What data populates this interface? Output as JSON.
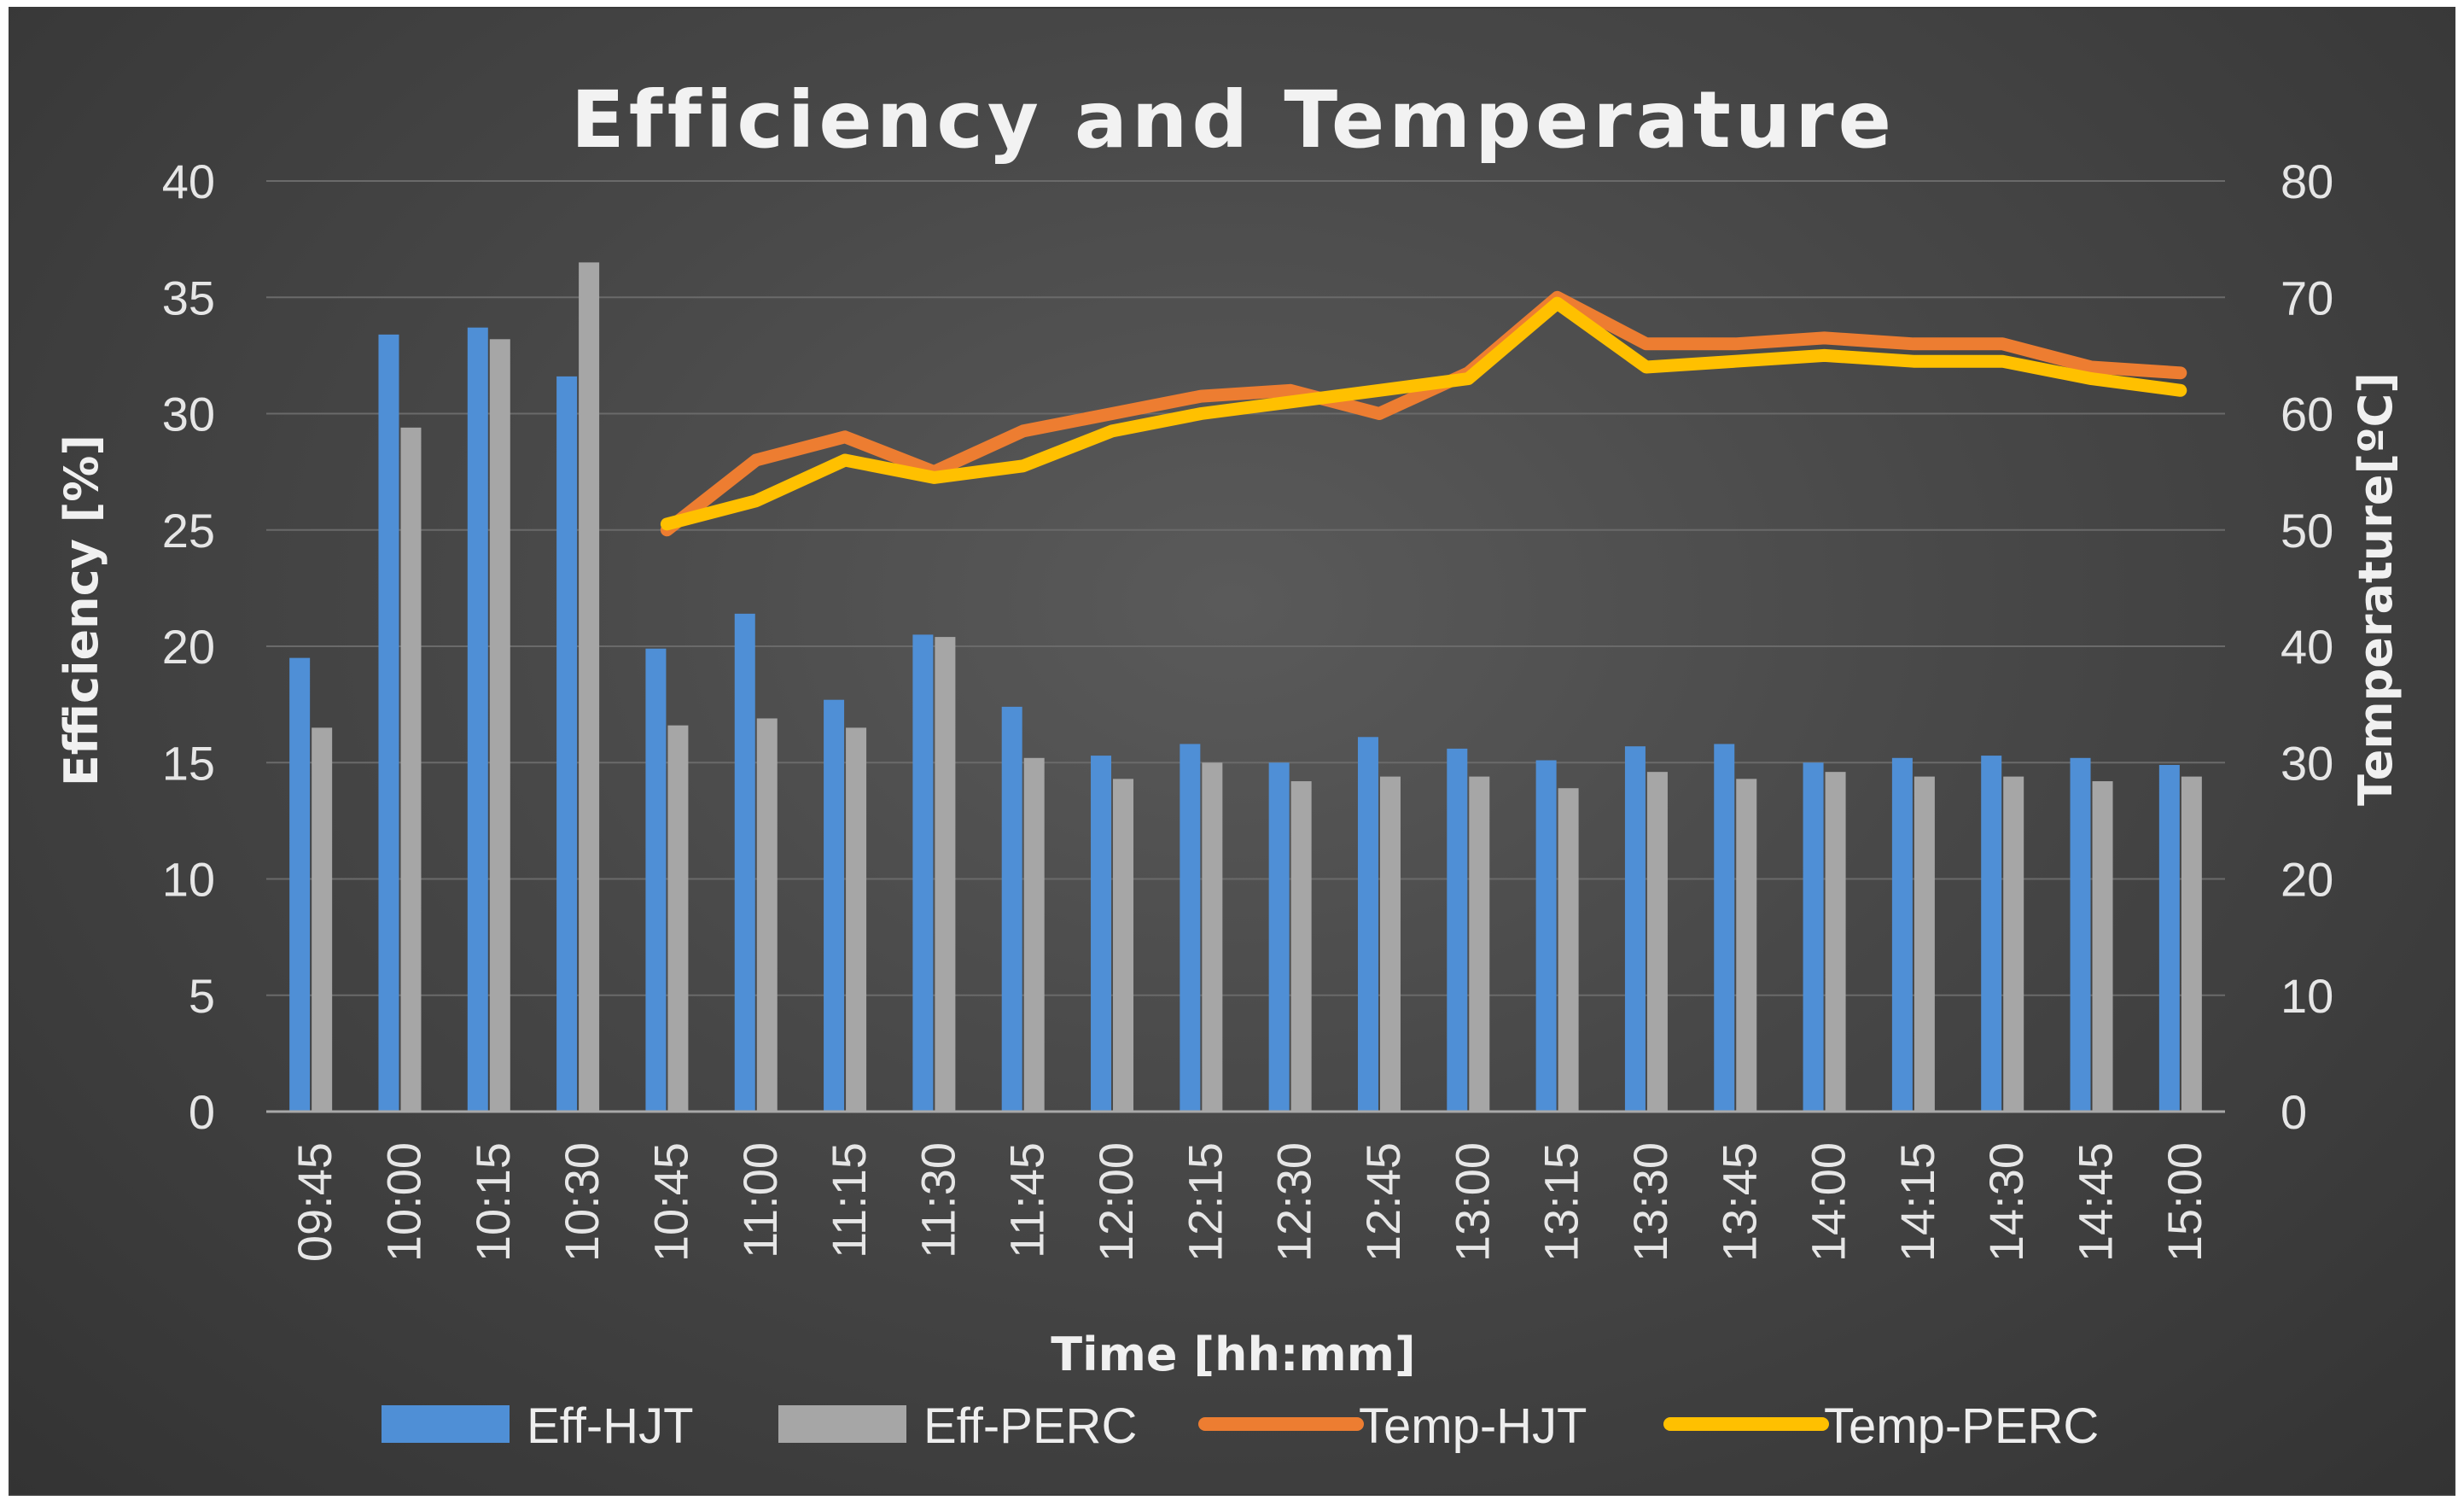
{
  "chart_data": {
    "type": "bar",
    "title": "Efficiency and Temperature",
    "xlabel": "Time [hh:mm]",
    "ylabel": "Efficiency [%]",
    "y2label": "Temperature[ºC]",
    "ylim": [
      0,
      40
    ],
    "y2lim": [
      0,
      80
    ],
    "yticks": [
      0,
      5,
      10,
      15,
      20,
      25,
      30,
      35,
      40
    ],
    "y2ticks": [
      0,
      10,
      20,
      30,
      40,
      50,
      60,
      70,
      80
    ],
    "grid": true,
    "legend_position": "bottom",
    "categories": [
      "09:45",
      "10:00",
      "10:15",
      "10:30",
      "10:45",
      "11:00",
      "11:15",
      "11:30",
      "11:45",
      "12:00",
      "12:15",
      "12:30",
      "12:45",
      "13:00",
      "13:15",
      "13:30",
      "13:45",
      "14:00",
      "14:15",
      "14:30",
      "14:45",
      "15:00"
    ],
    "series": [
      {
        "name": "Eff-HJT",
        "kind": "bar",
        "axis": "left",
        "color": "#4f8fd6",
        "values": [
          19.5,
          33.4,
          33.7,
          31.6,
          19.9,
          21.4,
          17.7,
          20.5,
          17.4,
          15.3,
          15.8,
          15.0,
          16.1,
          15.6,
          15.1,
          15.7,
          15.8,
          15.0,
          15.2,
          15.3,
          15.2,
          14.9
        ]
      },
      {
        "name": "Eff-PERC",
        "kind": "bar",
        "axis": "left",
        "color": "#a6a6a6",
        "values": [
          16.5,
          29.4,
          33.2,
          36.5,
          16.6,
          16.9,
          16.5,
          20.4,
          15.2,
          14.3,
          15.0,
          14.2,
          14.4,
          14.4,
          13.9,
          14.6,
          14.3,
          14.6,
          14.4,
          14.4,
          14.2,
          14.4
        ]
      },
      {
        "name": "Temp-HJT",
        "kind": "line",
        "axis": "right",
        "color": "#ed7d31",
        "start_index": 4,
        "values": [
          null,
          null,
          null,
          null,
          50.0,
          56.0,
          58.0,
          55.0,
          58.5,
          60.0,
          61.5,
          62.0,
          60.0,
          63.5,
          70.0,
          66.0,
          66.0,
          66.5,
          66.0,
          66.0,
          64.0,
          63.5
        ]
      },
      {
        "name": "Temp-PERC",
        "kind": "line",
        "axis": "right",
        "color": "#ffc000",
        "start_index": 4,
        "values": [
          null,
          null,
          null,
          null,
          50.5,
          52.5,
          56.0,
          54.5,
          55.5,
          58.5,
          60.0,
          61.0,
          62.0,
          63.0,
          69.5,
          64.0,
          64.5,
          65.0,
          64.5,
          64.5,
          63.0,
          62.0
        ]
      }
    ]
  }
}
